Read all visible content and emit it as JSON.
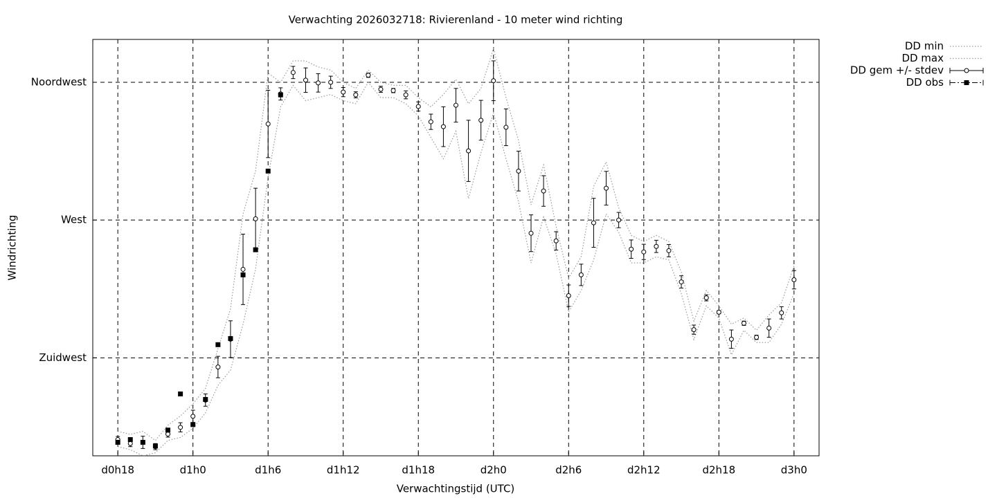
{
  "chart_data": {
    "type": "errorbar",
    "title": "Verwachting 2026032718: Rivierenland - 10 meter wind richting",
    "xlabel": "Verwachtingstijd (UTC)",
    "ylabel": "Windrichting",
    "xlim": [
      16,
      74
    ],
    "ylim": [
      193,
      329
    ],
    "xticks": [
      {
        "value": 18,
        "label": "d0h18"
      },
      {
        "value": 24,
        "label": "d1h0"
      },
      {
        "value": 30,
        "label": "d1h6"
      },
      {
        "value": 36,
        "label": "d1h12"
      },
      {
        "value": 42,
        "label": "d1h18"
      },
      {
        "value": 48,
        "label": "d2h0"
      },
      {
        "value": 54,
        "label": "d2h6"
      },
      {
        "value": 60,
        "label": "d2h12"
      },
      {
        "value": 66,
        "label": "d2h18"
      },
      {
        "value": 72,
        "label": "d3h0"
      }
    ],
    "yticks": [
      {
        "value": 225,
        "label": "Zuidwest"
      },
      {
        "value": 270,
        "label": "West"
      },
      {
        "value": 315,
        "label": "Noordwest"
      }
    ],
    "grid": true,
    "legend": "outside-top-right",
    "x": [
      18,
      19,
      20,
      21,
      22,
      23,
      24,
      25,
      26,
      27,
      28,
      29,
      30,
      31,
      32,
      33,
      34,
      35,
      36,
      37,
      38,
      39,
      40,
      41,
      42,
      43,
      44,
      45,
      46,
      47,
      48,
      49,
      50,
      51,
      52,
      53,
      54,
      55,
      56,
      57,
      58,
      59,
      60,
      61,
      62,
      63,
      64,
      65,
      66,
      67,
      68,
      69,
      70,
      71,
      72
    ],
    "series": [
      {
        "name": "DD min",
        "color": "#999999",
        "line_style": "dotted",
        "values": [
          196,
          195,
          193,
          194,
          198,
          199,
          202,
          207,
          216,
          221,
          236,
          254,
          284,
          307,
          314,
          309,
          310,
          311,
          309,
          308,
          315,
          310,
          310,
          308,
          304,
          297,
          290,
          299,
          277,
          292,
          305,
          290,
          276,
          256,
          271,
          259,
          240,
          247,
          257,
          272,
          266,
          256,
          256,
          258,
          257,
          246,
          231,
          242,
          238,
          226,
          234,
          230,
          230,
          236,
          246
        ]
      },
      {
        "name": "DD max",
        "color": "#999999",
        "line_style": "dotted",
        "values": [
          201,
          200,
          201,
          198,
          203,
          206,
          210,
          215,
          228,
          241,
          272,
          286,
          318,
          315,
          322,
          322,
          320,
          319,
          315,
          313,
          319,
          315,
          314,
          314,
          310,
          307,
          311,
          316,
          308,
          313,
          326,
          310,
          296,
          275,
          288,
          268,
          251,
          258,
          281,
          289,
          274,
          265,
          263,
          265,
          263,
          253,
          237,
          247,
          242,
          236,
          238,
          234,
          239,
          243,
          255
        ]
      },
      {
        "name": "DD gem +/- stdev",
        "color": "#000000",
        "line_style": "errorbar",
        "values": [
          198.3,
          197.0,
          197.4,
          196.0,
          200.1,
          202.3,
          205.9,
          211.2,
          222.0,
          231.1,
          253.9,
          270.4,
          301.4,
          311.2,
          318.2,
          315.7,
          314.8,
          315.0,
          311.8,
          310.9,
          317.3,
          312.7,
          312.3,
          310.9,
          307.1,
          302.1,
          300.5,
          307.5,
          292.6,
          302.6,
          315.5,
          300.3,
          286.0,
          265.7,
          279.5,
          263.2,
          245.3,
          252.1,
          269.1,
          280.4,
          270.0,
          260.5,
          259.6,
          261.4,
          260.0,
          249.8,
          234.2,
          244.6,
          239.9,
          231.1,
          236.3,
          231.7,
          234.7,
          239.7,
          250.5
        ],
        "errors": [
          1,
          1,
          2,
          1,
          1,
          1.5,
          2,
          2,
          3.5,
          6,
          11.5,
          10,
          11,
          2,
          2,
          4,
          3,
          2,
          1.5,
          1,
          0.7,
          1,
          0.7,
          1.3,
          1.5,
          2.5,
          6.5,
          5.5,
          10,
          6.5,
          6.5,
          6,
          6.5,
          6,
          5,
          3,
          3.5,
          3.5,
          8,
          5.5,
          2.5,
          3,
          2.5,
          2,
          2,
          2,
          1.5,
          1,
          0.5,
          3,
          0.7,
          0.7,
          3,
          2,
          3
        ]
      },
      {
        "name": "DD obs",
        "color": "#000000",
        "line_style": "points",
        "values": [
          197.4,
          198.3,
          197.4,
          196.2,
          201.4,
          213.2,
          203.2,
          211.4,
          229.3,
          231.3,
          252.1,
          260.3,
          286.0,
          310.9,
          null,
          null,
          null,
          null,
          null,
          null,
          null,
          null,
          null,
          null,
          null,
          null,
          null,
          null,
          null,
          null,
          null,
          null,
          null,
          null,
          null,
          null,
          null,
          null,
          null,
          null,
          null,
          null,
          null,
          null,
          null,
          null,
          null,
          null,
          null,
          null,
          null,
          null,
          null,
          null,
          null
        ]
      }
    ]
  }
}
